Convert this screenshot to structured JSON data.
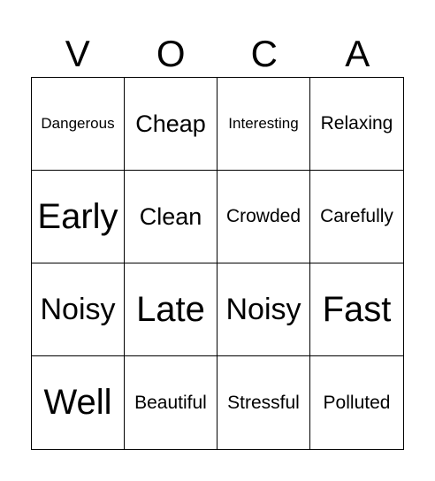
{
  "header": {
    "letters": [
      "V",
      "O",
      "C",
      "A"
    ]
  },
  "board": {
    "rows": [
      [
        "Dangerous",
        "Cheap",
        "Interesting",
        "Relaxing"
      ],
      [
        "Early",
        "Clean",
        "Crowded",
        "Carefully"
      ],
      [
        "Noisy",
        "Late",
        "Noisy",
        "Fast"
      ],
      [
        "Well",
        "Beautiful",
        "Stressful",
        "Polluted"
      ]
    ]
  }
}
